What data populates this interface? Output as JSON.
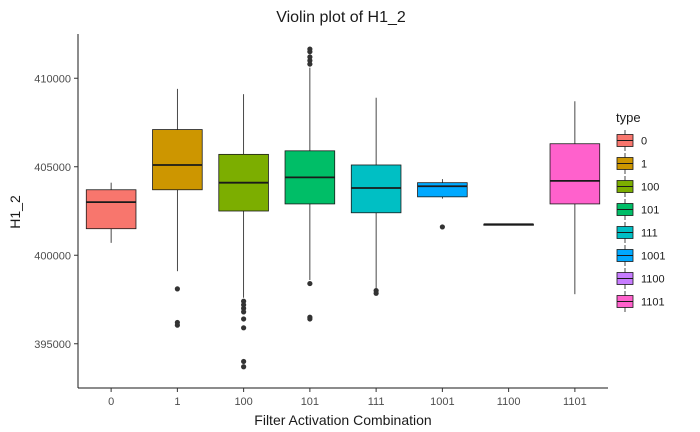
{
  "chart_data": {
    "type": "boxplot",
    "title": "Violin plot of H1_2",
    "xlabel": "Filter Activation Combination",
    "ylabel": "H1_2",
    "ylim": [
      392500,
      412500
    ],
    "y_ticks": [
      395000,
      400000,
      405000,
      410000
    ],
    "y_tick_labels": [
      "395000",
      "400000",
      "405000",
      "410000"
    ],
    "categories": [
      "0",
      "1",
      "100",
      "101",
      "111",
      "1001",
      "1100",
      "1101"
    ],
    "legend_title": "type",
    "boxes": [
      {
        "type": "0",
        "color": "#F8766D",
        "whisker_low": 400700,
        "q1": 401500,
        "median": 403000,
        "q3": 403700,
        "whisker_high": 404100,
        "outliers": []
      },
      {
        "type": "1",
        "color": "#CD9600",
        "whisker_low": 399100,
        "q1": 403700,
        "median": 405100,
        "q3": 407100,
        "whisker_high": 409400,
        "outliers": [
          398100,
          396200,
          396050
        ]
      },
      {
        "type": "100",
        "color": "#7CAE00",
        "whisker_low": 397600,
        "q1": 402500,
        "median": 404100,
        "q3": 405700,
        "whisker_high": 409100,
        "outliers": [
          397400,
          397200,
          397000,
          396800,
          396400,
          395900,
          394000,
          393700
        ]
      },
      {
        "type": "101",
        "color": "#00BE67",
        "whisker_low": 398600,
        "q1": 402900,
        "median": 404400,
        "q3": 405900,
        "whisker_high": 410600,
        "outliers": [
          398400,
          396500,
          396400,
          410800,
          411000,
          411200,
          411500,
          411650
        ]
      },
      {
        "type": "111",
        "color": "#00BFC4",
        "whisker_low": 398100,
        "q1": 402400,
        "median": 403800,
        "q3": 405100,
        "whisker_high": 408900,
        "outliers": [
          398000,
          397850
        ]
      },
      {
        "type": "1001",
        "color": "#00A9FF",
        "whisker_low": 403200,
        "q1": 403300,
        "median": 403900,
        "q3": 404100,
        "whisker_high": 404300,
        "outliers": [
          401600
        ]
      },
      {
        "type": "1100",
        "color": "#C77CFF",
        "whisker_low": 401750,
        "q1": 401750,
        "median": 401750,
        "q3": 401750,
        "whisker_high": 401750,
        "outliers": []
      },
      {
        "type": "1101",
        "color": "#FF61CC",
        "whisker_low": 397800,
        "q1": 402900,
        "median": 404200,
        "q3": 406300,
        "whisker_high": 408700,
        "outliers": []
      }
    ]
  }
}
